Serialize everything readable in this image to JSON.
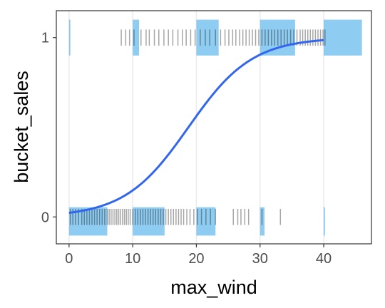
{
  "chart_data": {
    "type": "scatter",
    "title": "",
    "xlabel": "max_wind",
    "ylabel": "bucket_sales",
    "xlim": [
      -2,
      47.5
    ],
    "ylim": [
      -0.15,
      1.15
    ],
    "x_ticks": [
      0,
      10,
      20,
      30,
      40
    ],
    "x_tick_labels": [
      "0",
      "10",
      "20",
      "30",
      "40"
    ],
    "y_ticks": [
      0,
      1
    ],
    "y_tick_labels": [
      "0",
      "1"
    ],
    "grid": true,
    "legend": "none",
    "colors": {
      "rug": "#000000",
      "histogram": "#5fb7eb",
      "fit_line": "#3366ee",
      "gridline": "#ebebeb",
      "panel_border": "#333333"
    },
    "logistic_fit": {
      "label": "",
      "intercept": -3.75,
      "slope": 0.2,
      "x_range": [
        0,
        40
      ]
    },
    "histogram_bins": {
      "bin_width": 5,
      "zero_group": [
        {
          "x_start": 0,
          "x_end": 6,
          "height": 0.2
        },
        {
          "x_start": 10,
          "x_end": 15,
          "height": 0.2
        },
        {
          "x_start": 20,
          "x_end": 23,
          "height": 0.2
        },
        {
          "x_start": 30,
          "x_end": 30.7,
          "height": 0.2
        },
        {
          "x_start": 40,
          "x_end": 40.2,
          "height": 0.2
        }
      ],
      "one_group": [
        {
          "x_start": 0,
          "x_end": 0.2,
          "height": 0.2
        },
        {
          "x_start": 10,
          "x_end": 11,
          "height": 0.2
        },
        {
          "x_start": 20,
          "x_end": 23.5,
          "height": 0.2
        },
        {
          "x_start": 30,
          "x_end": 35.5,
          "height": 0.2
        },
        {
          "x_start": 40,
          "x_end": 46,
          "height": 0.2
        }
      ]
    },
    "rug_zero": [
      0.2,
      0.6,
      1.0,
      1.5,
      2.0,
      2.4,
      2.8,
      3.2,
      3.6,
      4.0,
      4.4,
      4.8,
      5.2,
      5.6,
      6.0,
      6.3,
      6.6,
      6.9,
      7.2,
      7.5,
      7.8,
      8.1,
      8.4,
      8.7,
      9.0,
      9.3,
      9.6,
      10.0,
      10.4,
      10.8,
      11.2,
      11.6,
      12.0,
      12.4,
      12.8,
      13.2,
      13.6,
      14.0,
      14.4,
      14.8,
      15.2,
      15.6,
      16.0,
      16.4,
      16.8,
      17.2,
      17.6,
      18.0,
      18.5,
      19.0,
      19.6,
      20.2,
      20.8,
      21.5,
      22.2,
      23.0,
      25.8,
      26.5,
      27.0,
      27.6,
      28.2,
      30.3,
      33.2
    ],
    "rug_one": [
      8.2,
      8.9,
      9.5,
      10.2,
      11.3,
      12.1,
      12.6,
      13.4,
      14.1,
      14.9,
      15.6,
      16.3,
      17.1,
      17.8,
      18.4,
      19.1,
      19.8,
      20.6,
      21.4,
      22.1,
      23.0,
      23.8,
      24.5,
      25.1,
      25.7,
      26.2,
      26.8,
      27.3,
      27.8,
      28.3,
      28.8,
      29.3,
      29.8,
      30.3,
      30.8,
      31.3,
      31.8,
      32.3,
      32.8,
      33.3,
      33.8,
      34.3,
      34.8,
      35.3,
      35.8,
      36.3,
      36.7,
      37.1,
      37.5,
      37.9,
      38.3,
      38.7,
      39.1,
      39.5,
      39.9,
      40.2
    ]
  }
}
